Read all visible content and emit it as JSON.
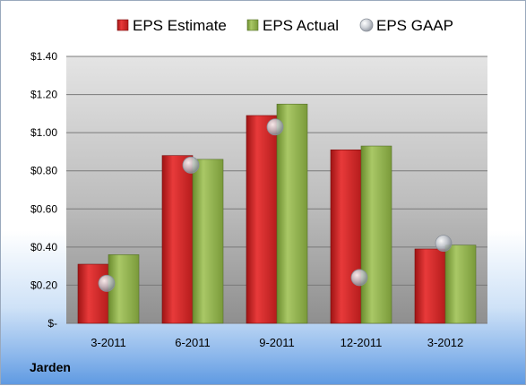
{
  "chart_data": {
    "type": "bar",
    "categories": [
      "3-2011",
      "6-2011",
      "9-2011",
      "12-2011",
      "3-2012"
    ],
    "series": [
      {
        "name": "EPS Estimate",
        "type": "bar",
        "color": "#d42a2a",
        "values": [
          0.31,
          0.88,
          1.09,
          0.91,
          0.39
        ]
      },
      {
        "name": "EPS Actual",
        "type": "bar",
        "color": "#8db04a",
        "values": [
          0.36,
          0.86,
          1.15,
          0.93,
          0.41
        ]
      },
      {
        "name": "EPS GAAP",
        "type": "marker",
        "color": "#b8bcc4",
        "values": [
          0.21,
          0.83,
          1.03,
          0.24,
          0.42
        ]
      }
    ],
    "yticks": [
      "$-",
      "$0.20",
      "$0.40",
      "$0.60",
      "$0.80",
      "$1.00",
      "$1.20",
      "$1.40"
    ],
    "ylim": [
      0,
      1.4
    ],
    "grid": true,
    "legend": "top-center",
    "company": "Jarden"
  }
}
